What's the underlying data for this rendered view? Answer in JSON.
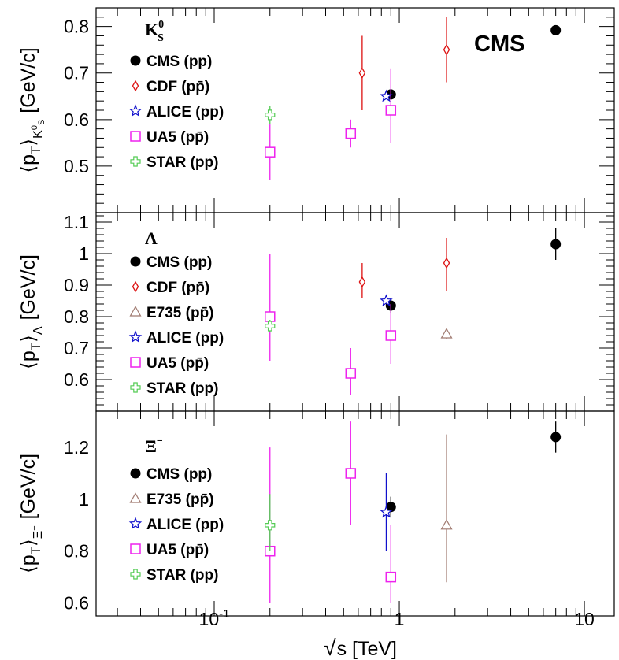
{
  "chart_data": {
    "type": "scatter",
    "x_scale": "log",
    "xlim": [
      0.023,
      14.5
    ],
    "xlabel": "√s  [TeV]",
    "x_ticks": [
      {
        "value": 0.1,
        "base": "10",
        "exp": "-1"
      },
      {
        "value": 1,
        "base": "1",
        "exp": ""
      },
      {
        "value": 10,
        "base": "10",
        "exp": ""
      }
    ],
    "experiment_label": "CMS",
    "colors": {
      "CMS": "#000000",
      "CDF": "#dd1111",
      "E735": "#a07a70",
      "ALICE": "#1010cc",
      "UA5": "#ee22ee",
      "STAR": "#55cc55"
    },
    "panels": [
      {
        "particle": "K",
        "particle_sup": "0",
        "particle_sub": "S",
        "ylabel": "⟨p_T⟩ [GeV/c]",
        "ylim": [
          0.4,
          0.84
        ],
        "y_ticks": [
          "0.5",
          "0.6",
          "0.7",
          "0.8"
        ],
        "legend": [
          {
            "name": "CMS (pp)",
            "marker": "circle",
            "color": "CMS"
          },
          {
            "name": "CDF (pp̄)",
            "marker": "diamond",
            "color": "CDF"
          },
          {
            "name": "ALICE (pp)",
            "marker": "star",
            "color": "ALICE"
          },
          {
            "name": "UA5 (pp̄)",
            "marker": "square",
            "color": "UA5"
          },
          {
            "name": "STAR (pp)",
            "marker": "cross",
            "color": "STAR"
          }
        ],
        "series": [
          {
            "name": "CMS (pp)",
            "marker": "circle",
            "color": "CMS",
            "points": [
              {
                "x": 0.9,
                "y": 0.654,
                "lo": 0.654,
                "hi": 0.654
              },
              {
                "x": 7.0,
                "y": 0.792,
                "lo": 0.792,
                "hi": 0.792
              }
            ]
          },
          {
            "name": "CDF (pp̄)",
            "marker": "diamond",
            "color": "CDF",
            "points": [
              {
                "x": 0.63,
                "y": 0.7,
                "lo": 0.62,
                "hi": 0.78
              },
              {
                "x": 1.8,
                "y": 0.75,
                "lo": 0.68,
                "hi": 0.82
              }
            ]
          },
          {
            "name": "ALICE (pp)",
            "marker": "star",
            "color": "ALICE",
            "points": [
              {
                "x": 0.85,
                "y": 0.65,
                "lo": 0.65,
                "hi": 0.65
              }
            ]
          },
          {
            "name": "UA5 (pp̄)",
            "marker": "square",
            "color": "UA5",
            "points": [
              {
                "x": 0.2,
                "y": 0.53,
                "lo": 0.47,
                "hi": 0.59
              },
              {
                "x": 0.546,
                "y": 0.57,
                "lo": 0.54,
                "hi": 0.6
              },
              {
                "x": 0.9,
                "y": 0.62,
                "lo": 0.55,
                "hi": 0.71
              }
            ]
          },
          {
            "name": "STAR (pp)",
            "marker": "cross",
            "color": "STAR",
            "points": [
              {
                "x": 0.2,
                "y": 0.61,
                "lo": 0.59,
                "hi": 0.63
              }
            ]
          }
        ]
      },
      {
        "particle": "Λ",
        "particle_sup": "",
        "particle_sub": "",
        "ylabel": "⟨p_T⟩ [GeV/c]",
        "ylim": [
          0.5,
          1.13
        ],
        "y_ticks": [
          "0.6",
          "0.7",
          "0.8",
          "0.9",
          "1",
          "1.1"
        ],
        "legend": [
          {
            "name": "CMS (pp)",
            "marker": "circle",
            "color": "CMS"
          },
          {
            "name": "CDF (pp̄)",
            "marker": "diamond",
            "color": "CDF"
          },
          {
            "name": "E735 (pp̄)",
            "marker": "triangle",
            "color": "E735"
          },
          {
            "name": "ALICE (pp)",
            "marker": "star",
            "color": "ALICE"
          },
          {
            "name": "UA5 (pp̄)",
            "marker": "square",
            "color": "UA5"
          },
          {
            "name": "STAR (pp)",
            "marker": "cross",
            "color": "STAR"
          }
        ],
        "series": [
          {
            "name": "CMS (pp)",
            "marker": "circle",
            "color": "CMS",
            "points": [
              {
                "x": 0.9,
                "y": 0.835,
                "lo": 0.81,
                "hi": 0.86
              },
              {
                "x": 7.0,
                "y": 1.03,
                "lo": 0.98,
                "hi": 1.08
              }
            ]
          },
          {
            "name": "CDF (pp̄)",
            "marker": "diamond",
            "color": "CDF",
            "points": [
              {
                "x": 0.63,
                "y": 0.91,
                "lo": 0.86,
                "hi": 0.97
              },
              {
                "x": 1.8,
                "y": 0.97,
                "lo": 0.88,
                "hi": 1.05
              }
            ]
          },
          {
            "name": "E735 (pp̄)",
            "marker": "triangle",
            "color": "E735",
            "points": [
              {
                "x": 1.8,
                "y": 0.745,
                "lo": 0.73,
                "hi": 0.76
              }
            ]
          },
          {
            "name": "ALICE (pp)",
            "marker": "star",
            "color": "ALICE",
            "points": [
              {
                "x": 0.85,
                "y": 0.85,
                "lo": 0.85,
                "hi": 0.85
              }
            ]
          },
          {
            "name": "UA5 (pp̄)",
            "marker": "square",
            "color": "UA5",
            "points": [
              {
                "x": 0.2,
                "y": 0.8,
                "lo": 0.66,
                "hi": 1.0
              },
              {
                "x": 0.546,
                "y": 0.62,
                "lo": 0.55,
                "hi": 0.7
              },
              {
                "x": 0.9,
                "y": 0.74,
                "lo": 0.65,
                "hi": 0.84
              }
            ]
          },
          {
            "name": "STAR (pp)",
            "marker": "cross",
            "color": "STAR",
            "points": [
              {
                "x": 0.2,
                "y": 0.77,
                "lo": 0.75,
                "hi": 0.79
              }
            ]
          }
        ]
      },
      {
        "particle": "Ξ",
        "particle_sup": "−",
        "particle_sub": "",
        "ylabel": "⟨p_T⟩ [GeV/c]",
        "ylim": [
          0.55,
          1.34
        ],
        "y_ticks": [
          "0.6",
          "0.8",
          "1",
          "1.2"
        ],
        "legend": [
          {
            "name": "CMS (pp)",
            "marker": "circle",
            "color": "CMS"
          },
          {
            "name": "E735 (pp̄)",
            "marker": "triangle",
            "color": "E735"
          },
          {
            "name": "ALICE (pp)",
            "marker": "star",
            "color": "ALICE"
          },
          {
            "name": "UA5 (pp̄)",
            "marker": "square",
            "color": "UA5"
          },
          {
            "name": "STAR (pp)",
            "marker": "cross",
            "color": "STAR"
          }
        ],
        "series": [
          {
            "name": "CMS (pp)",
            "marker": "circle",
            "color": "CMS",
            "points": [
              {
                "x": 0.9,
                "y": 0.97,
                "lo": 0.93,
                "hi": 1.01
              },
              {
                "x": 7.0,
                "y": 1.24,
                "lo": 1.18,
                "hi": 1.3
              }
            ]
          },
          {
            "name": "E735 (pp̄)",
            "marker": "triangle",
            "color": "E735",
            "points": [
              {
                "x": 1.8,
                "y": 0.9,
                "lo": 0.68,
                "hi": 1.25
              }
            ]
          },
          {
            "name": "ALICE (pp)",
            "marker": "star",
            "color": "ALICE",
            "points": [
              {
                "x": 0.85,
                "y": 0.95,
                "lo": 0.8,
                "hi": 1.1
              }
            ]
          },
          {
            "name": "UA5 (pp̄)",
            "marker": "square",
            "color": "UA5",
            "points": [
              {
                "x": 0.2,
                "y": 0.8,
                "lo": 0.6,
                "hi": 1.2
              },
              {
                "x": 0.546,
                "y": 1.1,
                "lo": 0.9,
                "hi": 1.3
              },
              {
                "x": 0.9,
                "y": 0.7,
                "lo": 0.6,
                "hi": 0.9
              }
            ]
          },
          {
            "name": "STAR (pp)",
            "marker": "cross",
            "color": "STAR",
            "points": [
              {
                "x": 0.2,
                "y": 0.9,
                "lo": 0.8,
                "hi": 1.02
              }
            ]
          }
        ]
      }
    ]
  }
}
